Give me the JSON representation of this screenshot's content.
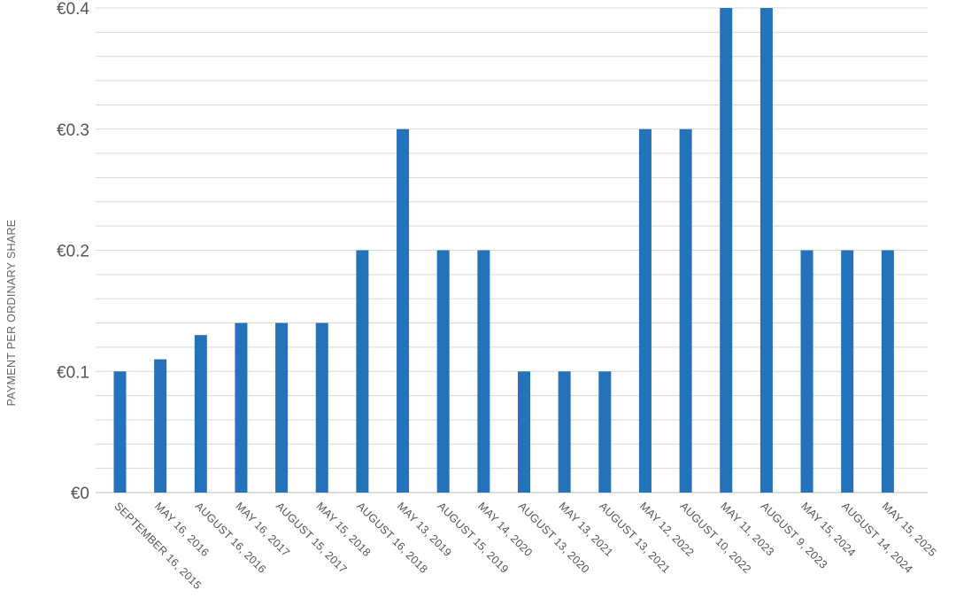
{
  "chart_data": {
    "type": "bar",
    "title": "",
    "xlabel": "",
    "ylabel": "PAYMENT PER ORDINARY SHARE",
    "ylim": [
      0,
      0.4
    ],
    "y_tick_values": [
      0,
      0.1,
      0.2,
      0.3,
      0.4
    ],
    "y_tick_labels": [
      "€0",
      "€0.1",
      "€0.2",
      "€0.3",
      "€0.4"
    ],
    "grid": true,
    "minor_grid_step": 0.02,
    "bar_color": "#2372BA",
    "categories": [
      "SEPTEMBER 16, 2015",
      "MAY 16, 2016",
      "AUGUST 16, 2016",
      "MAY 16, 2017",
      "AUGUST 15, 2017",
      "MAY 15, 2018",
      "AUGUST 16, 2018",
      "MAY 13, 2019",
      "AUGUST 15, 2019",
      "MAY 14, 2020",
      "AUGUST 13, 2020",
      "MAY 13, 2021",
      "AUGUST 13, 2021",
      "MAY 12, 2022",
      "AUGUST 10, 2022",
      "MAY 11, 2023",
      "AUGUST 9, 2023",
      "MAY 15, 2024",
      "AUGUST 14, 2024",
      "MAY 15, 2025"
    ],
    "values": [
      0.1,
      0.11,
      0.13,
      0.14,
      0.14,
      0.14,
      0.2,
      0.3,
      0.2,
      0.2,
      0.1,
      0.1,
      0.1,
      0.3,
      0.3,
      0.4,
      0.4,
      0.2,
      0.2,
      0.2
    ]
  }
}
